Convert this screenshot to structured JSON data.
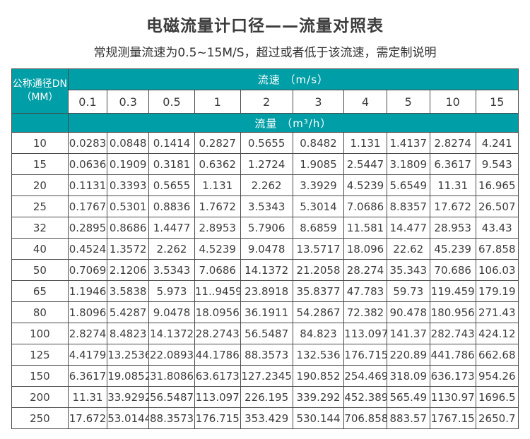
{
  "page": {
    "title": "电磁流量计口径——流量对照表",
    "subtitle": "常规测量流速为0.5~15M/S，超过或者低于该流速，需定制说明"
  },
  "table": {
    "corner_header_line1": "公称通径DN",
    "corner_header_line2": "（MM）",
    "velocity_header": "流速 （m/s）",
    "flow_header": "流量 （m³/h）",
    "velocities": [
      "0.1",
      "0.3",
      "0.5",
      "1",
      "2",
      "3",
      "4",
      "5",
      "10",
      "15"
    ],
    "rows": [
      {
        "dn": "10",
        "values": [
          "0.0283",
          "0.0848",
          "0.1414",
          "0.2827",
          "0.5655",
          "0.8482",
          "1.131",
          "1.4137",
          "2.8274",
          "4.241"
        ]
      },
      {
        "dn": "15",
        "values": [
          "0.0636",
          "0.1909",
          "0.3181",
          "0.6362",
          "1.2724",
          "1.9085",
          "2.5447",
          "3.1809",
          "6.3617",
          "9.543"
        ]
      },
      {
        "dn": "20",
        "values": [
          "0.1131",
          "0.3393",
          "0.5655",
          "1.131",
          "2.262",
          "3.3929",
          "4.5239",
          "5.6549",
          "11.31",
          "16.965"
        ]
      },
      {
        "dn": "25",
        "values": [
          "0.1767",
          "0.5301",
          "0.8836",
          "1.7672",
          "3.5343",
          "5.3014",
          "7.0686",
          "8.8357",
          "17.672",
          "26.507"
        ]
      },
      {
        "dn": "32",
        "values": [
          "0.2895",
          "0.8686",
          "1.4477",
          "2.8953",
          "5.7906",
          "8.6859",
          "11.581",
          "14.477",
          "28.953",
          "43.43"
        ]
      },
      {
        "dn": "40",
        "values": [
          "0.4524",
          "1.3572",
          "2.262",
          "4.5239",
          "9.0478",
          "13.5717",
          "18.096",
          "22.62",
          "45.239",
          "67.858"
        ]
      },
      {
        "dn": "50",
        "values": [
          "0.7069",
          "2.1206",
          "3.5343",
          "7.0686",
          "14.1372",
          "21.2058",
          "28.274",
          "35.343",
          "70.686",
          "106.03"
        ]
      },
      {
        "dn": "65",
        "values": [
          "1.1946",
          "3.5838",
          "5.973",
          "11..9459",
          "23.8918",
          "35.8377",
          "47.783",
          "59.73",
          "119.459",
          "179.19"
        ]
      },
      {
        "dn": "80",
        "values": [
          "1.8096",
          "5.4287",
          "9.0478",
          "18.0956",
          "36.1911",
          "54.2867",
          "72.382",
          "90.478",
          "180.956",
          "271.43"
        ]
      },
      {
        "dn": "100",
        "values": [
          "2.8274",
          "8.4823",
          "14.1372",
          "28.2743",
          "56.5487",
          "84.823",
          "113.097",
          "141.37",
          "282.743",
          "424.12"
        ]
      },
      {
        "dn": "125",
        "values": [
          "4.4179",
          "13.2536",
          "22.0893",
          "44.1786",
          "88.3573",
          "132.536",
          "176.715",
          "220.89",
          "441.786",
          "662.68"
        ]
      },
      {
        "dn": "150",
        "values": [
          "6.3617",
          "19.0852",
          "31.8086",
          "63.6173",
          "127.2345",
          "190.852",
          "254.469",
          "318.09",
          "636.173",
          "954.26"
        ]
      },
      {
        "dn": "200",
        "values": [
          "11.31",
          "33.9292",
          "56.5487",
          "113.097",
          "226.195",
          "339.292",
          "452.389",
          "565.49",
          "1130.97",
          "1696.5"
        ]
      },
      {
        "dn": "250",
        "values": [
          "17.672",
          "53.0144",
          "88.3573",
          "176.715",
          "353.429",
          "530.144",
          "706.858",
          "883.57",
          "1767.15",
          "2650.7"
        ]
      }
    ]
  },
  "colors": {
    "header_teal": "#009EA6",
    "border": "#4a4a4a",
    "text": "#3d3d3d"
  }
}
